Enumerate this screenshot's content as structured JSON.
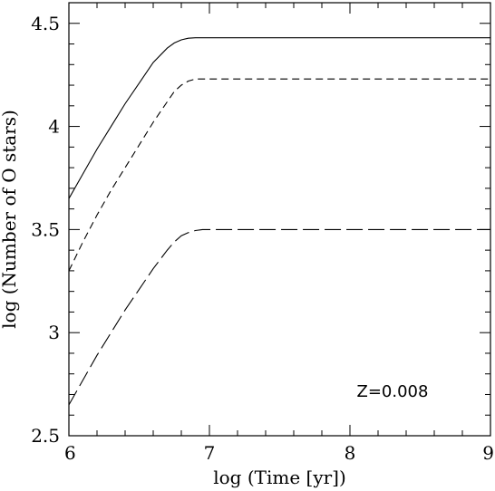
{
  "chart_data": {
    "type": "line",
    "title": "",
    "xlabel": "log (Time [yr])",
    "ylabel": "log (Number of O stars)",
    "xlim": [
      6,
      9
    ],
    "ylim": [
      2.5,
      4.6
    ],
    "xticks": [
      {
        "value": 6,
        "label": "6"
      },
      {
        "value": 7,
        "label": "7"
      },
      {
        "value": 8,
        "label": "8"
      },
      {
        "value": 9,
        "label": "9"
      }
    ],
    "yticks": [
      {
        "value": 2.5,
        "label": "2.5"
      },
      {
        "value": 3,
        "label": "3"
      },
      {
        "value": 3.5,
        "label": "3.5"
      },
      {
        "value": 4,
        "label": "4"
      },
      {
        "value": 4.5,
        "label": "4.5"
      }
    ],
    "annotation": "Z=0.008",
    "grid": false,
    "series": [
      {
        "style": "solid",
        "x": [
          6.0,
          6.1,
          6.2,
          6.3,
          6.4,
          6.5,
          6.6,
          6.7,
          6.75,
          6.8,
          6.85,
          6.9,
          6.95,
          7.0,
          8.0,
          9.0
        ],
        "y": [
          3.65,
          3.77,
          3.89,
          4.0,
          4.11,
          4.21,
          4.31,
          4.38,
          4.405,
          4.42,
          4.428,
          4.43,
          4.43,
          4.43,
          4.43,
          4.43
        ]
      },
      {
        "style": "short-dash",
        "x": [
          6.0,
          6.1,
          6.2,
          6.3,
          6.4,
          6.5,
          6.6,
          6.7,
          6.75,
          6.8,
          6.85,
          6.9,
          6.95,
          7.0,
          8.0,
          9.0
        ],
        "y": [
          3.3,
          3.44,
          3.57,
          3.69,
          3.8,
          3.91,
          4.02,
          4.12,
          4.17,
          4.2,
          4.22,
          4.23,
          4.23,
          4.23,
          4.23,
          4.23
        ]
      },
      {
        "style": "long-dash",
        "x": [
          6.0,
          6.1,
          6.2,
          6.3,
          6.4,
          6.5,
          6.6,
          6.7,
          6.75,
          6.8,
          6.85,
          6.9,
          6.95,
          7.0,
          8.0,
          9.0
        ],
        "y": [
          2.65,
          2.77,
          2.89,
          3.0,
          3.11,
          3.21,
          3.31,
          3.4,
          3.44,
          3.47,
          3.485,
          3.495,
          3.5,
          3.5,
          3.5,
          3.5
        ]
      }
    ]
  }
}
